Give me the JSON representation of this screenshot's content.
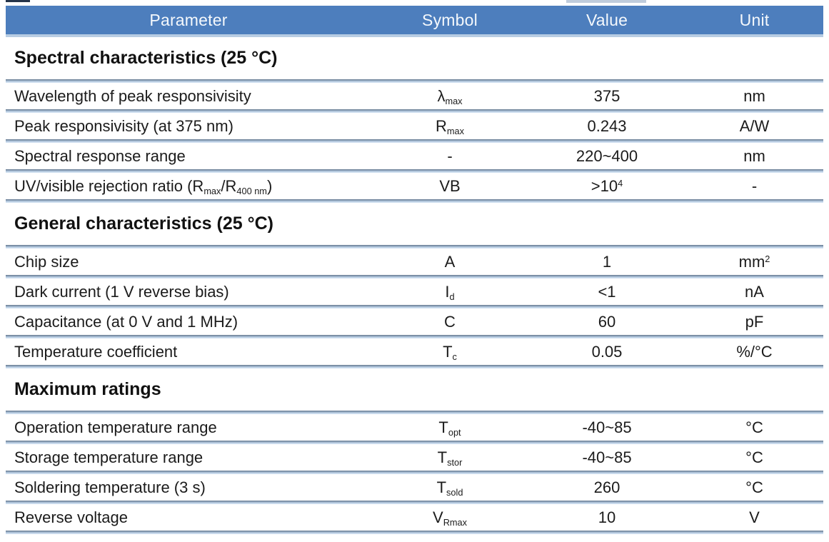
{
  "colors": {
    "header_bg": "#4d7ebd",
    "header_text": "#f4f8fc",
    "divider_top": "#66788e",
    "divider_bottom": "#c3d6ea",
    "body_text": "#1b1b1b"
  },
  "header": {
    "columns": [
      "Parameter",
      "Symbol",
      "Value",
      "Unit"
    ]
  },
  "sections": [
    {
      "title": "Spectral characteristics (25 °C)",
      "rows": [
        {
          "parameter": [
            {
              "t": "text",
              "v": "Wavelength of peak responsivisity"
            }
          ],
          "symbol": [
            {
              "t": "text",
              "v": "λ"
            },
            {
              "t": "sub",
              "v": "max"
            }
          ],
          "value": [
            {
              "t": "text",
              "v": "375"
            }
          ],
          "unit": [
            {
              "t": "text",
              "v": "nm"
            }
          ]
        },
        {
          "parameter": [
            {
              "t": "text",
              "v": "Peak responsivisity (at 375 nm)"
            }
          ],
          "symbol": [
            {
              "t": "text",
              "v": "R"
            },
            {
              "t": "sub",
              "v": "max"
            }
          ],
          "value": [
            {
              "t": "text",
              "v": "0.243"
            }
          ],
          "unit": [
            {
              "t": "text",
              "v": "A/W"
            }
          ]
        },
        {
          "parameter": [
            {
              "t": "text",
              "v": "Spectral response range"
            }
          ],
          "symbol": [
            {
              "t": "text",
              "v": "-"
            }
          ],
          "value": [
            {
              "t": "text",
              "v": "220~400"
            }
          ],
          "unit": [
            {
              "t": "text",
              "v": "nm"
            }
          ]
        },
        {
          "parameter": [
            {
              "t": "text",
              "v": "UV/visible rejection ratio (R"
            },
            {
              "t": "sub",
              "v": "max"
            },
            {
              "t": "text",
              "v": "/R"
            },
            {
              "t": "sub",
              "v": "400 nm"
            },
            {
              "t": "text",
              "v": ")"
            }
          ],
          "symbol": [
            {
              "t": "text",
              "v": "VB"
            }
          ],
          "value": [
            {
              "t": "text",
              "v": ">10"
            },
            {
              "t": "sup",
              "v": "4"
            }
          ],
          "unit": [
            {
              "t": "text",
              "v": "-"
            }
          ]
        }
      ]
    },
    {
      "title": "General characteristics (25 °C)",
      "rows": [
        {
          "parameter": [
            {
              "t": "text",
              "v": "Chip size"
            }
          ],
          "symbol": [
            {
              "t": "text",
              "v": "A"
            }
          ],
          "value": [
            {
              "t": "text",
              "v": "1"
            }
          ],
          "unit": [
            {
              "t": "text",
              "v": "mm"
            },
            {
              "t": "sup",
              "v": "2"
            }
          ]
        },
        {
          "parameter": [
            {
              "t": "text",
              "v": "Dark current (1 V reverse bias)"
            }
          ],
          "symbol": [
            {
              "t": "text",
              "v": "I"
            },
            {
              "t": "sub",
              "v": "d"
            }
          ],
          "value": [
            {
              "t": "text",
              "v": "<1"
            }
          ],
          "unit": [
            {
              "t": "text",
              "v": "nA"
            }
          ]
        },
        {
          "parameter": [
            {
              "t": "text",
              "v": "Capacitance (at 0 V and 1 MHz)"
            }
          ],
          "symbol": [
            {
              "t": "text",
              "v": "C"
            }
          ],
          "value": [
            {
              "t": "text",
              "v": "60"
            }
          ],
          "unit": [
            {
              "t": "text",
              "v": "pF"
            }
          ]
        },
        {
          "parameter": [
            {
              "t": "text",
              "v": "Temperature coefficient"
            }
          ],
          "symbol": [
            {
              "t": "text",
              "v": "T"
            },
            {
              "t": "sub",
              "v": "c"
            }
          ],
          "value": [
            {
              "t": "text",
              "v": "0.05"
            }
          ],
          "unit": [
            {
              "t": "text",
              "v": "%/°C"
            }
          ]
        }
      ]
    },
    {
      "title": "Maximum ratings",
      "rows": [
        {
          "parameter": [
            {
              "t": "text",
              "v": "Operation temperature range"
            }
          ],
          "symbol": [
            {
              "t": "text",
              "v": "T"
            },
            {
              "t": "sub",
              "v": "opt"
            }
          ],
          "value": [
            {
              "t": "text",
              "v": "-40~85"
            }
          ],
          "unit": [
            {
              "t": "text",
              "v": "°C"
            }
          ]
        },
        {
          "parameter": [
            {
              "t": "text",
              "v": "Storage temperature range"
            }
          ],
          "symbol": [
            {
              "t": "text",
              "v": "T"
            },
            {
              "t": "sub",
              "v": "stor"
            }
          ],
          "value": [
            {
              "t": "text",
              "v": "-40~85"
            }
          ],
          "unit": [
            {
              "t": "text",
              "v": "°C"
            }
          ]
        },
        {
          "parameter": [
            {
              "t": "text",
              "v": "Soldering temperature (3 s)"
            }
          ],
          "symbol": [
            {
              "t": "text",
              "v": "T"
            },
            {
              "t": "sub",
              "v": "sold"
            }
          ],
          "value": [
            {
              "t": "text",
              "v": "260"
            }
          ],
          "unit": [
            {
              "t": "text",
              "v": "°C"
            }
          ]
        },
        {
          "parameter": [
            {
              "t": "text",
              "v": "Reverse voltage"
            }
          ],
          "symbol": [
            {
              "t": "text",
              "v": "V"
            },
            {
              "t": "sub",
              "v": "Rmax"
            }
          ],
          "value": [
            {
              "t": "text",
              "v": "10"
            }
          ],
          "unit": [
            {
              "t": "text",
              "v": "V"
            }
          ]
        }
      ]
    }
  ]
}
